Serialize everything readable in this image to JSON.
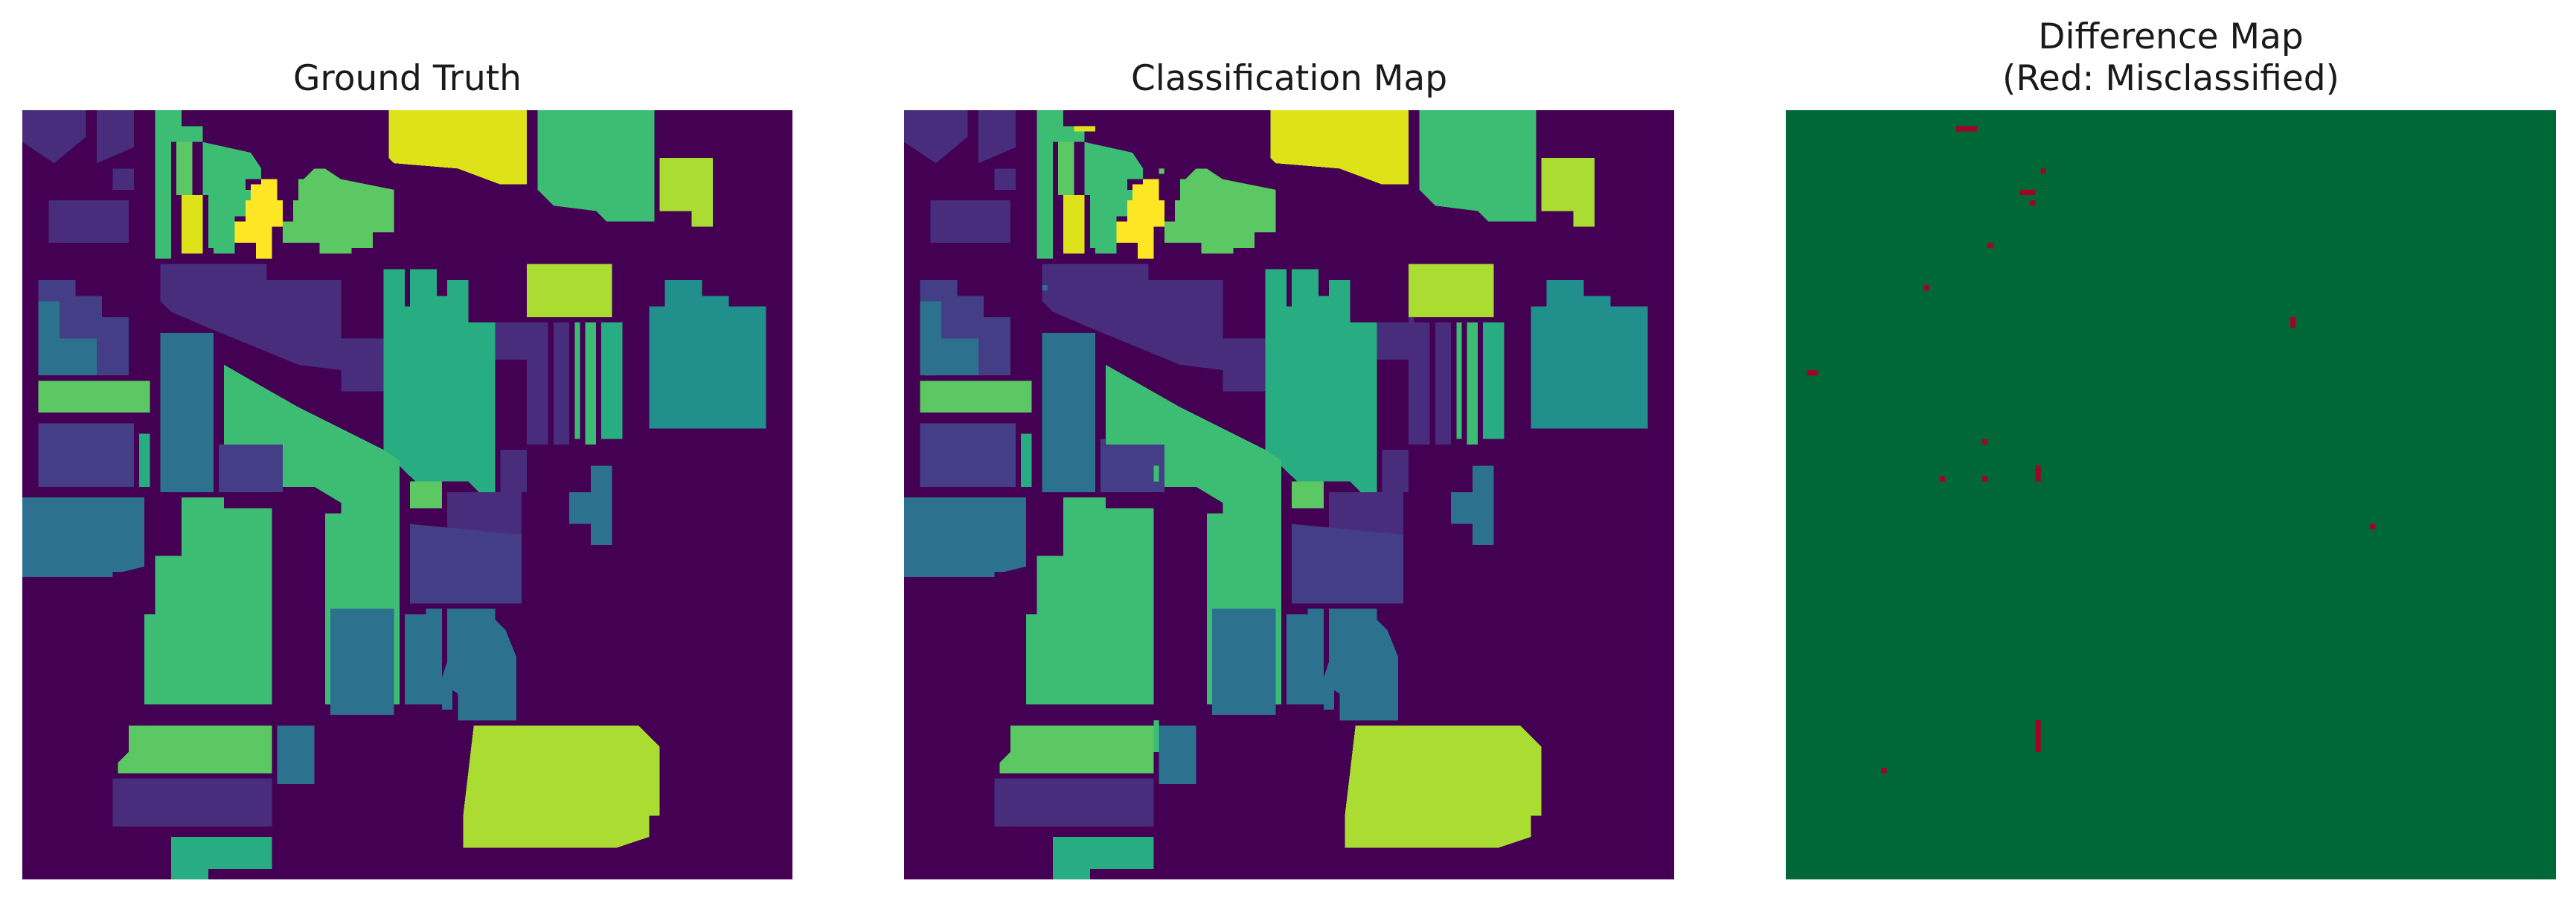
{
  "colors": {
    "background": "#440154",
    "c1": "#3b518b",
    "c2": "#2c718e",
    "c3": "#21908d",
    "c4": "#27ad81",
    "c5": "#3dbc74",
    "c6": "#5cc863",
    "c7": "#aadc32",
    "c8": "#dde318",
    "c9": "#fde725",
    "c10": "#472d7b",
    "c11": "#433e85",
    "correct": "#006837",
    "misclassified": "#a50026"
  },
  "chart_data": [
    {
      "type": "heatmap",
      "title": "Ground Truth",
      "variant": "ground-truth",
      "grid": false,
      "axes_visible": false
    },
    {
      "type": "heatmap",
      "title": "Classification Map",
      "variant": "classification",
      "grid": false,
      "axes_visible": false
    },
    {
      "type": "heatmap",
      "title": "Difference Map\n(Red: Misclassified)",
      "variant": "difference",
      "grid": false,
      "axes_visible": false
    }
  ]
}
